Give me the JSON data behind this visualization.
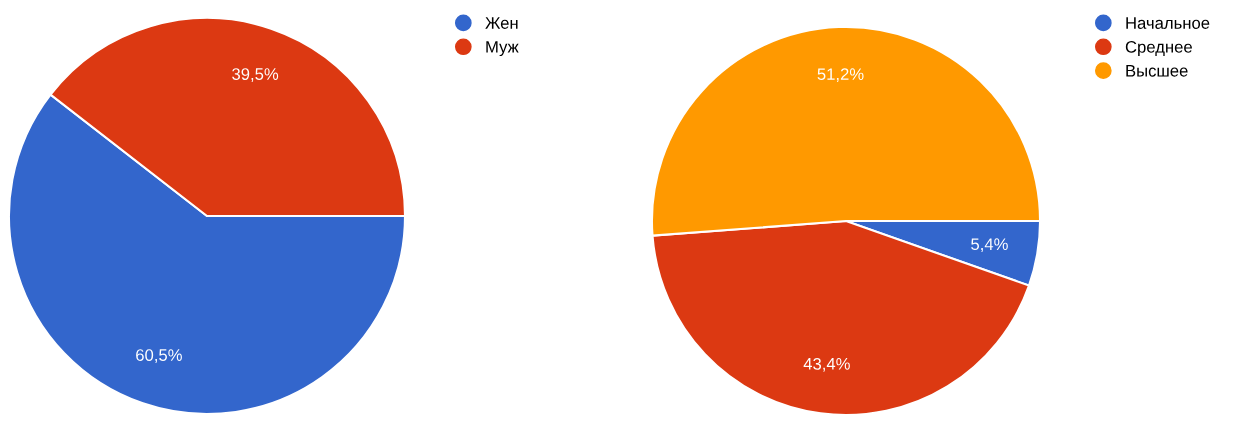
{
  "chart_data": [
    {
      "type": "pie",
      "categories": [
        "Жен",
        "Муж"
      ],
      "values": [
        60.5,
        39.5
      ],
      "value_labels": [
        "60,5%",
        "39,5%"
      ],
      "colors": [
        "#3366cc",
        "#dc3912"
      ],
      "legend": "top right"
    },
    {
      "type": "pie",
      "categories": [
        "Начальное",
        "Среднее",
        "Высшее"
      ],
      "values": [
        5.4,
        43.4,
        51.2
      ],
      "value_labels": [
        "5,4%",
        "43,4%",
        "51,2%"
      ],
      "colors": [
        "#3366cc",
        "#dc3912",
        "#ff9900"
      ],
      "legend": "top right"
    }
  ]
}
